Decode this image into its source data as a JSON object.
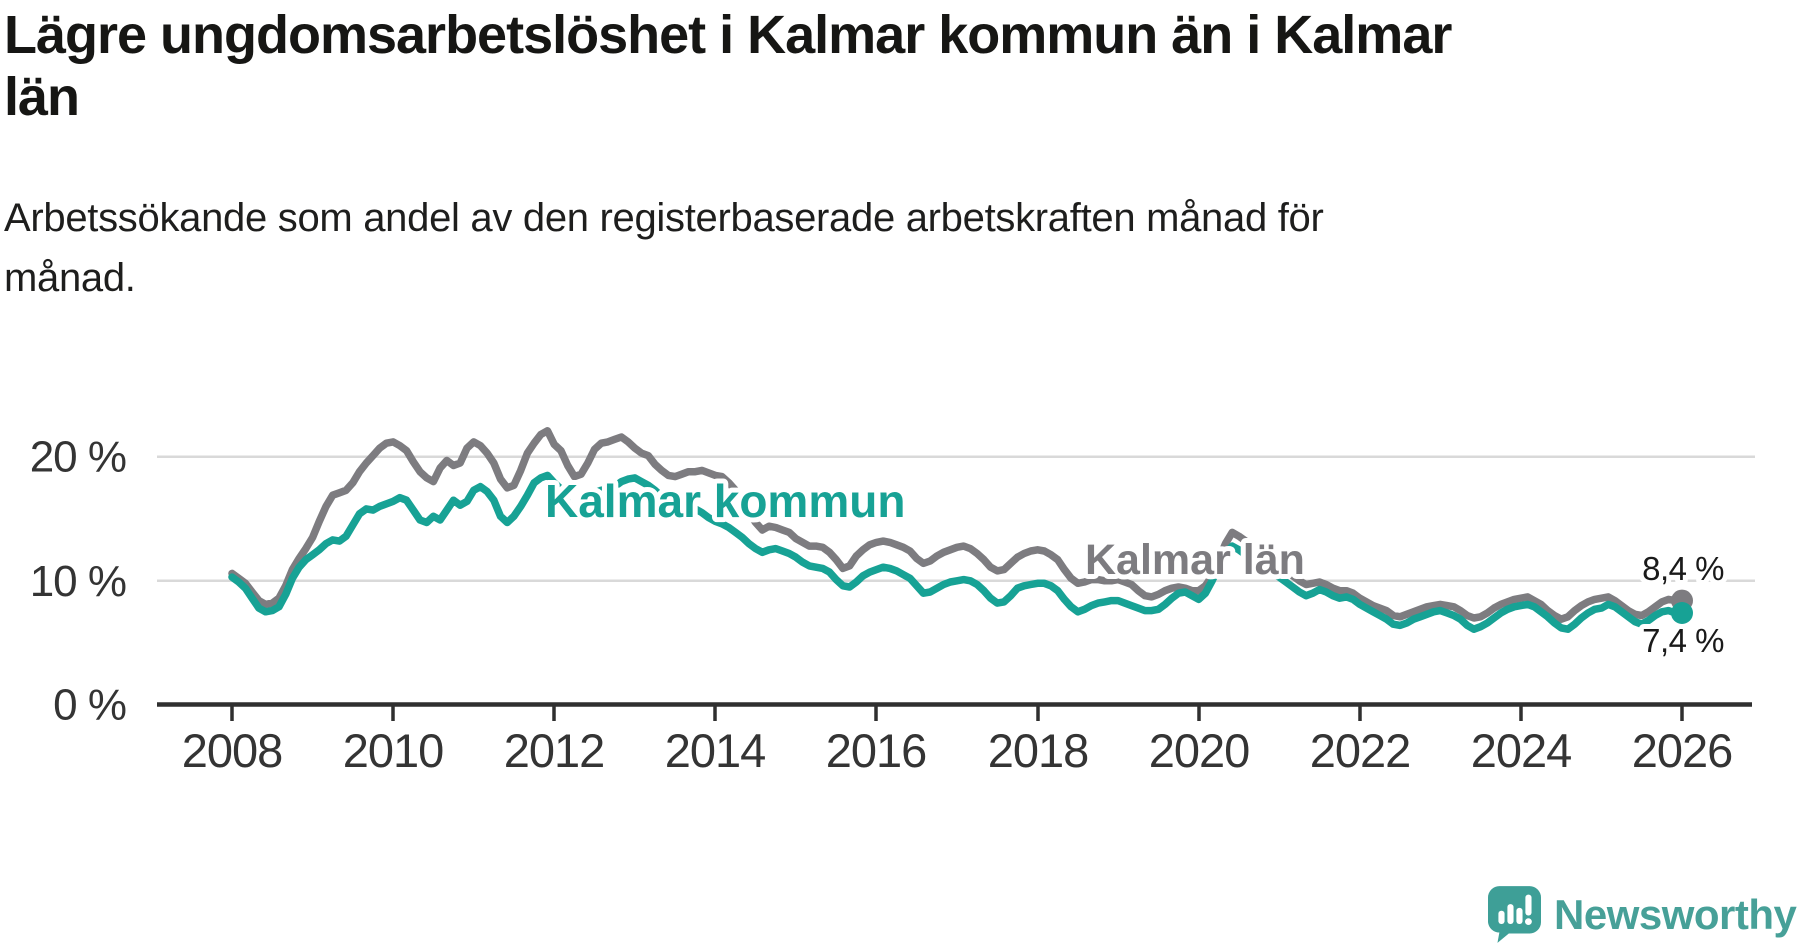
{
  "header": {
    "title": "Lägre ungdomsarbetslöshet i Kalmar kommun än i Kalmar län",
    "title_lines": [
      "Lägre ungdomsarbetslöshet i Kalmar kommun än i Kalmar",
      "län"
    ],
    "subtitle": "Arbetssökande som andel av den registerbaserade arbetskraften månad för månad.",
    "subtitle_lines": [
      "Arbetssökande som andel av den registerbaserade arbetskraften månad för",
      "månad."
    ]
  },
  "footer": {
    "brand": "Newsworthy",
    "brand_color": "#47a098"
  },
  "chart_data": {
    "type": "line",
    "title": "Lägre ungdomsarbetslöshet i Kalmar kommun än i Kalmar län",
    "subtitle": "Arbetssökande som andel av den registerbaserade arbetskraften månad för månad.",
    "grid": "horizontal",
    "legend_position": "inline-labels",
    "x_axis": {
      "tick_labels": [
        "2008",
        "2010",
        "2012",
        "2014",
        "2016",
        "2018",
        "2020",
        "2022",
        "2024",
        "2026"
      ],
      "range": [
        2008,
        2026.1
      ]
    },
    "y_axis": {
      "unit": "%",
      "tick_labels": [
        "0 %",
        "10 %",
        "20 %"
      ],
      "tick_values": [
        0,
        10,
        20
      ],
      "range": [
        0,
        23
      ]
    },
    "start_year": 2008,
    "points_per_year": 12,
    "series": [
      {
        "name": "Kalmar kommun",
        "color": "#17a295",
        "end_label": "7,4 %",
        "values": [
          10.3,
          9.9,
          9.4,
          8.6,
          7.8,
          7.5,
          7.6,
          7.9,
          8.9,
          10.2,
          11.1,
          11.7,
          12.1,
          12.5,
          13.0,
          13.3,
          13.2,
          13.6,
          14.5,
          15.4,
          15.8,
          15.7,
          16.0,
          16.2,
          16.4,
          16.7,
          16.5,
          15.7,
          14.9,
          14.7,
          15.2,
          14.9,
          15.7,
          16.5,
          16.1,
          16.4,
          17.3,
          17.6,
          17.2,
          16.5,
          15.2,
          14.7,
          15.2,
          16.0,
          16.9,
          17.9,
          18.3,
          18.5,
          17.9,
          17.4,
          16.3,
          15.6,
          15.9,
          16.5,
          17.1,
          17.3,
          17.4,
          17.6,
          18.0,
          18.2,
          18.3,
          18.0,
          17.7,
          17.3,
          16.8,
          16.4,
          16.3,
          16.5,
          16.2,
          15.8,
          15.5,
          15.1,
          14.8,
          14.6,
          14.3,
          13.9,
          13.5,
          13.0,
          12.6,
          12.3,
          12.5,
          12.6,
          12.4,
          12.2,
          11.9,
          11.5,
          11.2,
          11.1,
          11.0,
          10.7,
          10.1,
          9.6,
          9.5,
          9.9,
          10.4,
          10.7,
          10.9,
          11.1,
          11.0,
          10.8,
          10.5,
          10.2,
          9.6,
          9.0,
          9.1,
          9.4,
          9.7,
          9.9,
          10.0,
          10.1,
          10.0,
          9.7,
          9.2,
          8.6,
          8.2,
          8.3,
          8.8,
          9.4,
          9.6,
          9.7,
          9.8,
          9.8,
          9.6,
          9.2,
          8.5,
          7.9,
          7.5,
          7.7,
          8.0,
          8.2,
          8.3,
          8.4,
          8.4,
          8.2,
          8.0,
          7.8,
          7.6,
          7.6,
          7.7,
          8.1,
          8.6,
          9.0,
          9.1,
          8.8,
          8.5,
          9.0,
          10.0,
          11.2,
          12.2,
          12.8,
          12.5,
          12.1,
          11.7,
          11.3,
          11.0,
          10.7,
          10.3,
          9.9,
          9.5,
          9.1,
          8.8,
          9.0,
          9.3,
          9.1,
          8.8,
          8.6,
          8.7,
          8.5,
          8.1,
          7.8,
          7.5,
          7.2,
          6.9,
          6.5,
          6.4,
          6.6,
          6.9,
          7.1,
          7.3,
          7.5,
          7.6,
          7.4,
          7.2,
          6.9,
          6.4,
          6.1,
          6.3,
          6.6,
          7.0,
          7.4,
          7.7,
          7.9,
          8.0,
          8.1,
          7.9,
          7.5,
          7.1,
          6.6,
          6.2,
          6.1,
          6.5,
          7.0,
          7.4,
          7.7,
          7.8,
          8.1,
          7.9,
          7.5,
          7.1,
          6.7,
          6.5,
          6.8,
          7.2,
          7.5,
          7.6,
          7.4,
          7.4
        ]
      },
      {
        "name": "Kalmar län",
        "color": "#7d7c80",
        "end_label": "8,4 %",
        "values": [
          10.6,
          10.2,
          9.8,
          9.1,
          8.4,
          8.1,
          8.2,
          8.6,
          9.6,
          10.9,
          11.8,
          12.6,
          13.5,
          14.8,
          16.0,
          16.9,
          17.1,
          17.3,
          17.9,
          18.8,
          19.5,
          20.1,
          20.7,
          21.1,
          21.2,
          20.9,
          20.5,
          19.6,
          18.8,
          18.3,
          18.0,
          19.1,
          19.7,
          19.3,
          19.5,
          20.7,
          21.2,
          20.9,
          20.3,
          19.5,
          18.2,
          17.5,
          17.7,
          18.9,
          20.3,
          21.1,
          21.8,
          22.1,
          21.0,
          20.5,
          19.3,
          18.4,
          18.6,
          19.5,
          20.6,
          21.1,
          21.2,
          21.4,
          21.6,
          21.2,
          20.7,
          20.3,
          20.1,
          19.4,
          18.9,
          18.5,
          18.4,
          18.6,
          18.8,
          18.8,
          18.9,
          18.7,
          18.5,
          18.4,
          17.9,
          17.3,
          16.5,
          15.5,
          14.7,
          14.1,
          14.4,
          14.3,
          14.1,
          13.9,
          13.4,
          13.1,
          12.8,
          12.8,
          12.7,
          12.3,
          11.7,
          11.0,
          11.2,
          12.0,
          12.5,
          12.9,
          13.1,
          13.2,
          13.1,
          12.9,
          12.7,
          12.4,
          11.8,
          11.4,
          11.6,
          12.0,
          12.3,
          12.5,
          12.7,
          12.8,
          12.6,
          12.2,
          11.7,
          11.1,
          10.8,
          10.9,
          11.4,
          11.9,
          12.2,
          12.4,
          12.5,
          12.4,
          12.1,
          11.7,
          10.9,
          10.2,
          9.8,
          9.9,
          10.1,
          10.1,
          10.0,
          10.0,
          10.1,
          9.9,
          9.7,
          9.2,
          8.8,
          8.7,
          8.9,
          9.2,
          9.4,
          9.5,
          9.4,
          9.2,
          9.2,
          9.6,
          10.4,
          11.7,
          13.0,
          13.9,
          13.6,
          13.2,
          12.8,
          12.4,
          12.1,
          11.8,
          11.4,
          10.9,
          10.4,
          10.0,
          9.7,
          9.8,
          9.9,
          9.7,
          9.4,
          9.2,
          9.2,
          9.0,
          8.6,
          8.3,
          8.0,
          7.8,
          7.6,
          7.2,
          7.1,
          7.3,
          7.5,
          7.7,
          7.9,
          8.0,
          8.1,
          8.0,
          7.9,
          7.6,
          7.2,
          7.0,
          7.1,
          7.4,
          7.8,
          8.1,
          8.3,
          8.5,
          8.6,
          8.7,
          8.4,
          8.1,
          7.6,
          7.2,
          6.9,
          7.1,
          7.6,
          8.0,
          8.3,
          8.5,
          8.6,
          8.7,
          8.4,
          8.0,
          7.6,
          7.3,
          7.2,
          7.5,
          7.9,
          8.3,
          8.5,
          8.4,
          8.4
        ]
      }
    ]
  }
}
